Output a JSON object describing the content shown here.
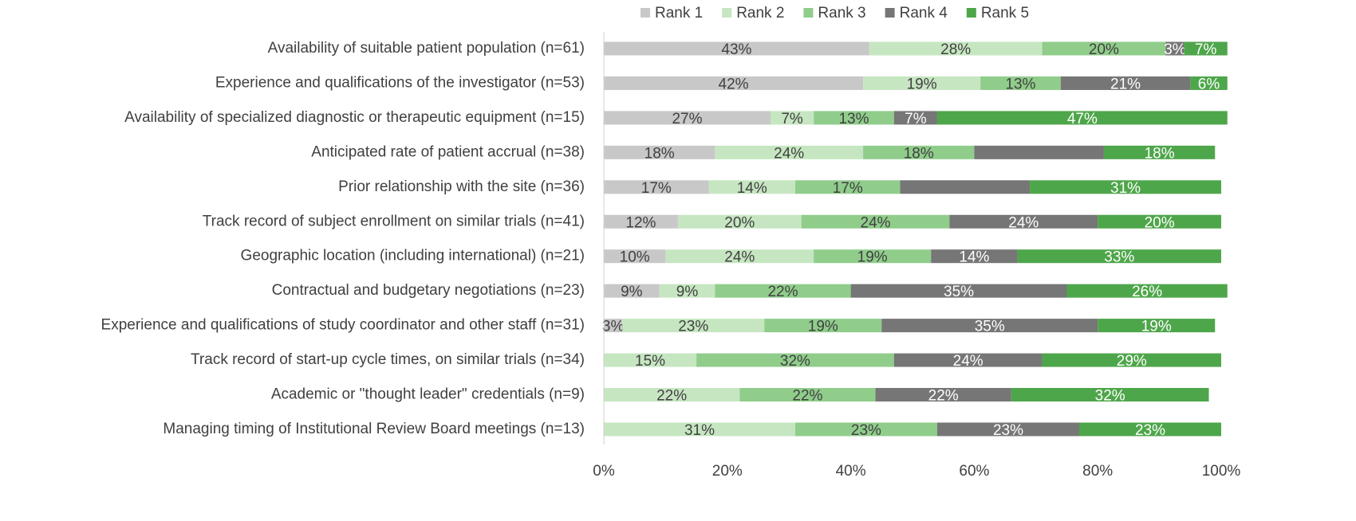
{
  "chart_data": {
    "type": "stacked_bar_horizontal",
    "categories": [
      "Availability of suitable patient population (n=61)",
      "Experience and qualifications of the investigator (n=53)",
      "Availability of specialized diagnostic or therapeutic equipment (n=15)",
      "Anticipated rate of patient accrual (n=38)",
      "Prior relationship with the site (n=36)",
      "Track record of subject enrollment on similar trials (n=41)",
      "Geographic location (including international) (n=21)",
      "Contractual and budgetary negotiations (n=23)",
      "Experience and qualifications of study coordinator and other staff (n=31)",
      "Track record of start-up cycle times, on similar trials (n=34)",
      "Academic or \"thought leader\" credentials (n=9)",
      "Managing timing of Institutional Review Board meetings (n=13)"
    ],
    "series": [
      {
        "name": "Rank 1",
        "color": "#c8c8c8",
        "values": [
          43,
          42,
          27,
          18,
          17,
          12,
          10,
          9,
          3,
          null,
          null,
          null
        ],
        "value_labels": [
          "43%",
          "42%",
          "27%",
          "18%",
          "17%",
          "12%",
          "10%",
          "9%",
          "3%",
          null,
          null,
          null
        ]
      },
      {
        "name": "Rank 2",
        "color": "#c6e6c1",
        "values": [
          28,
          19,
          7,
          24,
          14,
          20,
          24,
          9,
          23,
          15,
          22,
          31
        ],
        "value_labels": [
          "28%",
          "19%",
          "7%",
          "24%",
          "14%",
          "20%",
          "24%",
          "9%",
          "23%",
          "15%",
          "22%",
          "31%"
        ]
      },
      {
        "name": "Rank 3",
        "color": "#90cd8b",
        "values": [
          20,
          13,
          13,
          18,
          17,
          24,
          19,
          22,
          19,
          32,
          22,
          23
        ],
        "value_labels": [
          "20%",
          "13%",
          "13%",
          "18%",
          "17%",
          "24%",
          "19%",
          "22%",
          "19%",
          "32%",
          "22%",
          "23%"
        ]
      },
      {
        "name": "Rank 4",
        "color": "#767676",
        "values": [
          3,
          21,
          7,
          21,
          21,
          24,
          14,
          35,
          35,
          24,
          22,
          23
        ],
        "value_labels": [
          "3%",
          "21%",
          "7%",
          null,
          null,
          "24%",
          "14%",
          "35%",
          "35%",
          "24%",
          "22%",
          "23%"
        ]
      },
      {
        "name": "Rank 5",
        "color": "#4ea64a",
        "values": [
          7,
          6,
          47,
          18,
          31,
          20,
          33,
          26,
          19,
          29,
          32,
          23
        ],
        "value_labels": [
          "7%",
          "6%",
          "47%",
          "18%",
          "31%",
          "20%",
          "33%",
          "26%",
          "19%",
          "29%",
          "32%",
          "23%"
        ]
      }
    ],
    "xlim": [
      0,
      100
    ],
    "xticks": [
      {
        "value": 0,
        "label": "0%"
      },
      {
        "value": 20,
        "label": "20%"
      },
      {
        "value": 40,
        "label": "40%"
      },
      {
        "value": 60,
        "label": "60%"
      },
      {
        "value": 80,
        "label": "80%"
      },
      {
        "value": 100,
        "label": "100%"
      }
    ],
    "legend": "top"
  }
}
